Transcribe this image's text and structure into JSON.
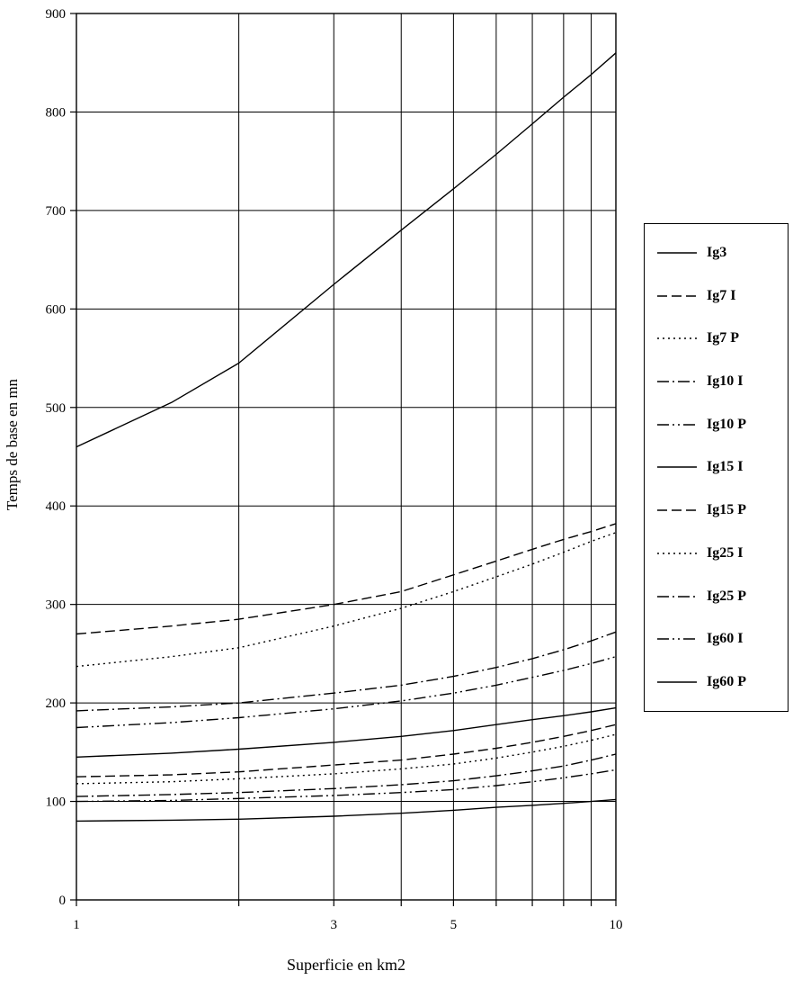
{
  "figure": {
    "background": "#ffffff",
    "ink_color": "#000000"
  },
  "chart_data": {
    "type": "line",
    "title": "",
    "xlabel": "Superficie en km2",
    "ylabel": "Temps de base en mn",
    "x_scale": "log",
    "xlim": [
      1,
      10
    ],
    "ylim": [
      0,
      900
    ],
    "grid": true,
    "legend_position": "right",
    "y_ticks": [
      0,
      100,
      200,
      300,
      400,
      500,
      600,
      700,
      800,
      900
    ],
    "x_gridlines": [
      1,
      2,
      3,
      4,
      5,
      6,
      7,
      8,
      9,
      10
    ],
    "x_tick_labels": [
      {
        "value": 1,
        "label": "1"
      },
      {
        "value": 3,
        "label": "3"
      },
      {
        "value": 5,
        "label": "5"
      },
      {
        "value": 10,
        "label": "10"
      }
    ],
    "x": [
      1,
      1.5,
      2,
      3,
      4,
      5,
      6,
      7,
      8,
      9,
      10
    ],
    "series": [
      {
        "name": "Ig3",
        "dash": "solid",
        "values": [
          460,
          505,
          545,
          625,
          680,
          722,
          757,
          788,
          815,
          838,
          860
        ]
      },
      {
        "name": "Ig7 I",
        "dash": "dash",
        "values": [
          270,
          278,
          285,
          300,
          313,
          330,
          344,
          356,
          366,
          374,
          382
        ]
      },
      {
        "name": "Ig7 P",
        "dash": "dot",
        "values": [
          237,
          247,
          256,
          278,
          296,
          313,
          328,
          341,
          353,
          364,
          373
        ]
      },
      {
        "name": "Ig10 I",
        "dash": "dashdot",
        "values": [
          192,
          196,
          200,
          210,
          218,
          227,
          236,
          245,
          254,
          263,
          272
        ]
      },
      {
        "name": "Ig10 P",
        "dash": "dashdotdot",
        "values": [
          175,
          180,
          185,
          194,
          202,
          210,
          218,
          226,
          233,
          240,
          247
        ]
      },
      {
        "name": "Ig15 I",
        "dash": "solid",
        "values": [
          145,
          149,
          153,
          160,
          166,
          172,
          178,
          183,
          187,
          191,
          195
        ]
      },
      {
        "name": "Ig15 P",
        "dash": "dash",
        "values": [
          125,
          127,
          130,
          137,
          142,
          148,
          154,
          160,
          166,
          172,
          178
        ]
      },
      {
        "name": "Ig25 I",
        "dash": "dot",
        "values": [
          118,
          120,
          123,
          128,
          133,
          138,
          144,
          150,
          156,
          162,
          168
        ]
      },
      {
        "name": "Ig25 P",
        "dash": "dashdot",
        "values": [
          105,
          107,
          109,
          113,
          117,
          121,
          126,
          131,
          136,
          142,
          148
        ]
      },
      {
        "name": "Ig60 I",
        "dash": "dashdotdot",
        "values": [
          100,
          101,
          103,
          106,
          109,
          112,
          116,
          120,
          124,
          128,
          132
        ]
      },
      {
        "name": "Ig60 P",
        "dash": "solid",
        "values": [
          80,
          81,
          82,
          85,
          88,
          91,
          94,
          96,
          98,
          100,
          102
        ]
      }
    ]
  }
}
